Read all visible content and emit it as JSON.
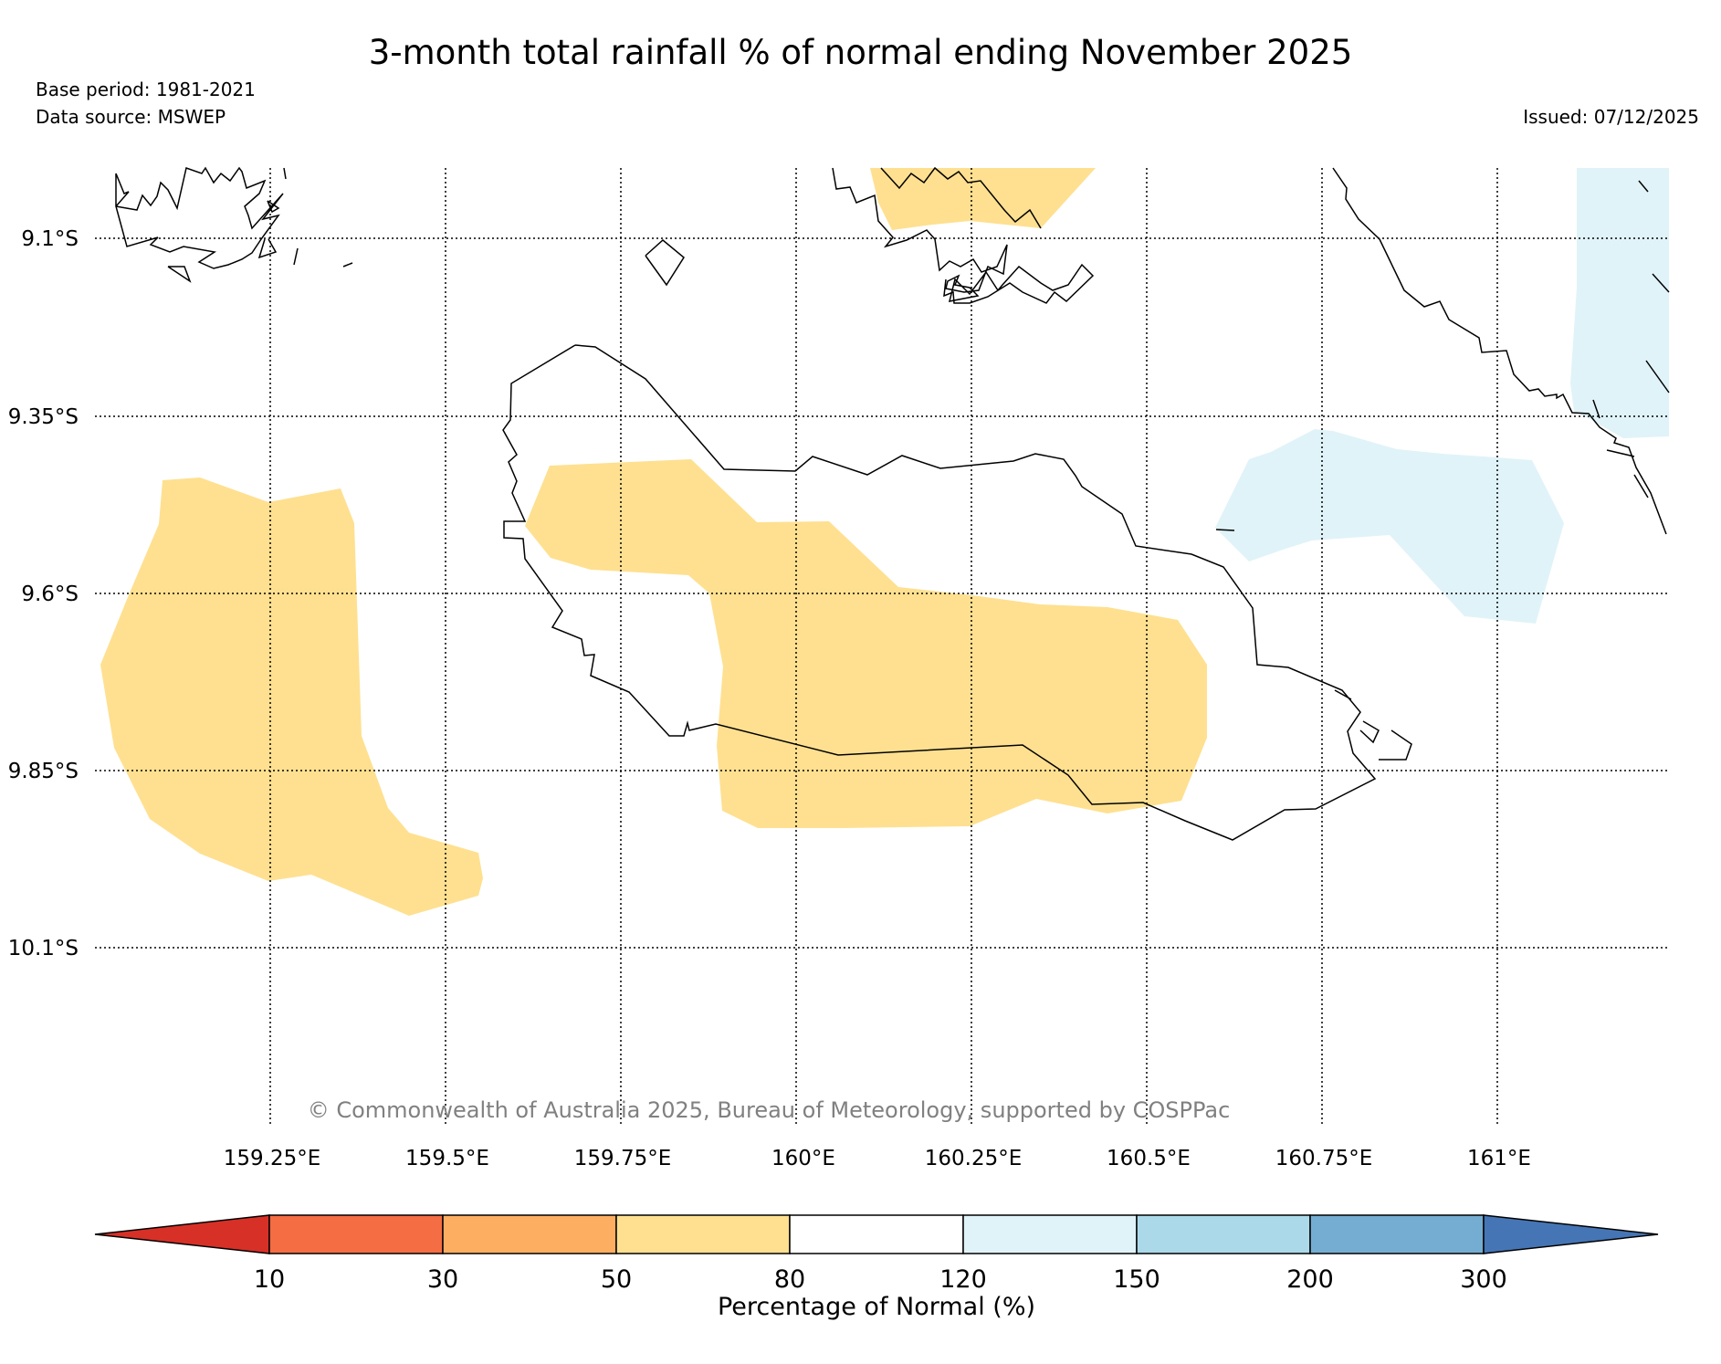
{
  "title": "3-month total rainfall % of normal ending November 2025",
  "base_period": "Base period: 1981-2021",
  "data_source": "Data source: MSWEP",
  "issued": "Issued: 07/12/2025",
  "copyright": "© Commonwealth of Australia 2025, Bureau of Meteorology, supported by COSPPac",
  "colorbar": {
    "label": "Percentage of Normal (%)",
    "ticks": [
      "10",
      "30",
      "50",
      "80",
      "120",
      "150",
      "200",
      "300"
    ],
    "colors": [
      "#d73027",
      "#f46d43",
      "#fdae61",
      "#fee090",
      "#ffffff",
      "#e0f3f8",
      "#abd9e9",
      "#74add1",
      "#4575b4"
    ]
  },
  "chart_data": {
    "type": "map",
    "title": "3-month total rainfall % of normal ending November 2025",
    "variable": "Percentage of Normal (%)",
    "lon_range": [
      159.0,
      161.25
    ],
    "lat_range": [
      -10.35,
      -9.0
    ],
    "lat_ticks": [
      -9.1,
      -9.35,
      -9.6,
      -9.85,
      -10.1
    ],
    "lon_ticks": [
      159.25,
      159.5,
      159.75,
      160.0,
      160.25,
      160.5,
      160.75,
      161.0
    ],
    "lat_tick_labels": [
      "9.1°S",
      "9.35°S",
      "9.6°S",
      "9.85°S",
      "10.1°S"
    ],
    "lon_tick_labels": [
      "159.25°E",
      "159.5°E",
      "159.75°E",
      "160°E",
      "160.25°E",
      "160.5°E",
      "160.75°E",
      "161°E"
    ],
    "grid": true,
    "filled_regions": [
      {
        "category": "50-80",
        "color": "#fee090",
        "location": "west, around 159.2°E 9.6°S"
      },
      {
        "category": "50-80",
        "color": "#fee090",
        "location": "central Guadalcanal, 159.7–160.6°E"
      },
      {
        "category": "50-80",
        "color": "#fee090",
        "location": "north, around 160.2°E 9.1°S"
      },
      {
        "category": "120-150",
        "color": "#e0f3f8",
        "location": "east, around 160.8°E 9.45°S"
      },
      {
        "category": "120-150",
        "color": "#e0f3f8",
        "location": "north-east edge, 161.1–161.25°E"
      }
    ]
  }
}
